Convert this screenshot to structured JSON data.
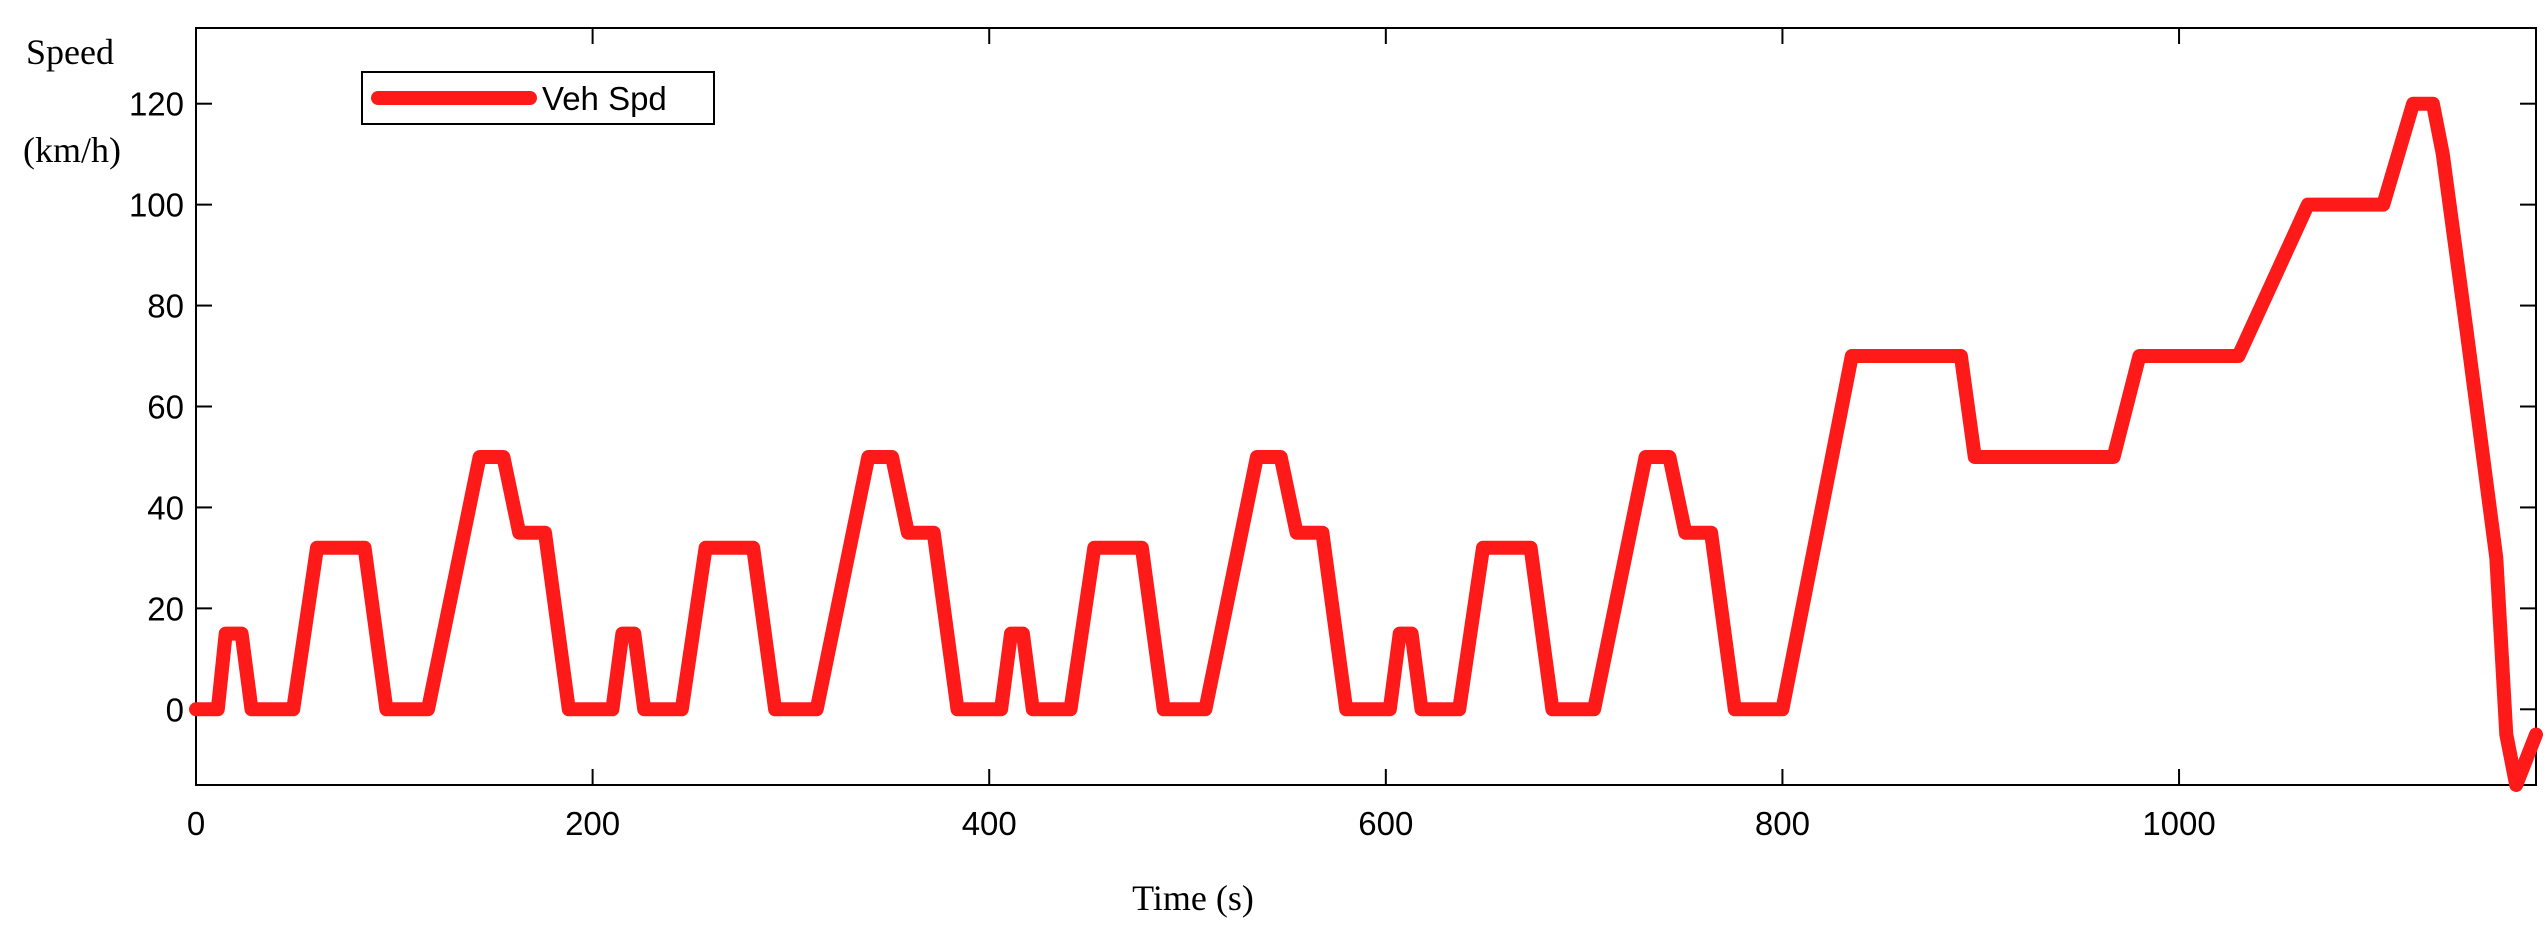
{
  "chart_data": {
    "type": "line",
    "ylabel_line1": "Speed",
    "ylabel_line2": "(km/h)",
    "xlabel": "Time (s)",
    "xlim": [
      0,
      1180
    ],
    "ylim": [
      -15,
      135
    ],
    "xticks": [
      0,
      200,
      400,
      600,
      800,
      1000
    ],
    "yticks": [
      0,
      20,
      40,
      60,
      80,
      100,
      120
    ],
    "grid": false,
    "legend_position": "top-left",
    "series": [
      {
        "name": "Veh Spd",
        "color": "#ff1a1a",
        "x": [
          0,
          11,
          15,
          23,
          28,
          49,
          61,
          85,
          96,
          117,
          143,
          155,
          163,
          176,
          188,
          206,
          210,
          215,
          221,
          226,
          245,
          257,
          281,
          292,
          313,
          339,
          351,
          359,
          372,
          384,
          402,
          406,
          411,
          417,
          422,
          441,
          453,
          477,
          488,
          509,
          535,
          547,
          555,
          568,
          580,
          598,
          602,
          607,
          613,
          618,
          637,
          649,
          673,
          684,
          705,
          731,
          743,
          751,
          764,
          776,
          794,
          800,
          835,
          845,
          890,
          897,
          967,
          980,
          1030,
          1065,
          1075,
          1103,
          1118,
          1128,
          1133,
          1145,
          1160,
          1165,
          1170,
          1180
        ],
        "y": [
          0,
          0,
          15,
          15,
          0,
          0,
          32,
          32,
          0,
          0,
          50,
          50,
          35,
          35,
          0,
          0,
          0,
          15,
          15,
          0,
          0,
          32,
          32,
          0,
          0,
          50,
          50,
          35,
          35,
          0,
          0,
          0,
          15,
          15,
          0,
          0,
          32,
          32,
          0,
          0,
          50,
          50,
          35,
          35,
          0,
          0,
          0,
          15,
          15,
          0,
          0,
          32,
          32,
          0,
          0,
          50,
          50,
          35,
          35,
          0,
          0,
          0,
          70,
          70,
          70,
          50,
          50,
          70,
          70,
          100,
          100,
          100,
          120,
          120,
          110,
          75,
          30,
          -5,
          -15,
          -5
        ]
      }
    ]
  }
}
